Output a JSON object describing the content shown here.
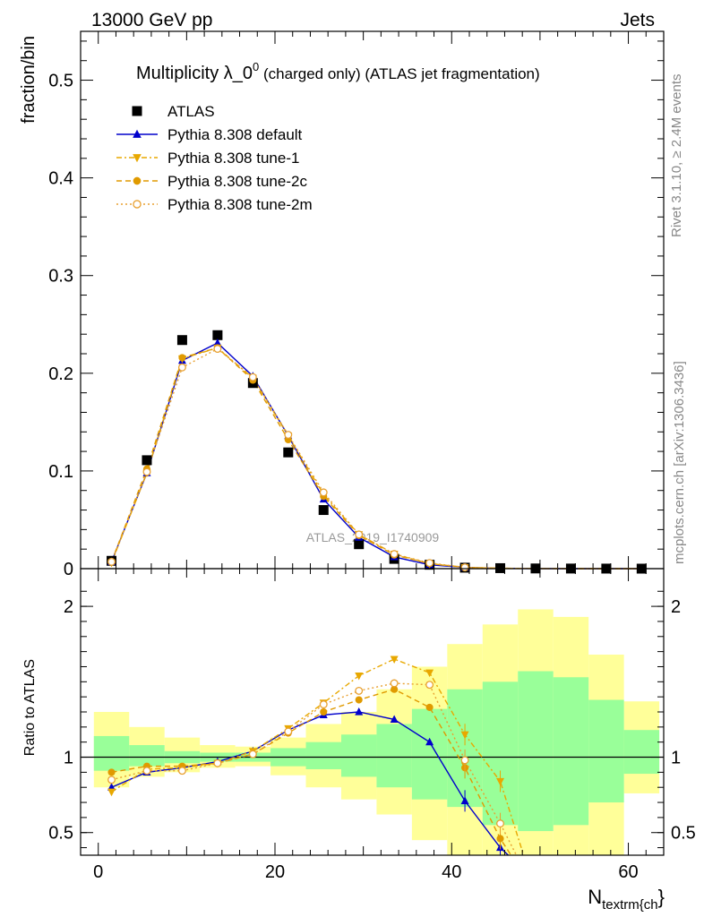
{
  "header": {
    "left": "13000 GeV pp",
    "right": "Jets"
  },
  "side_labels": {
    "rivet": "Rivet 3.1.10, ≥ 2.4M events",
    "mcplots": "mcplots.cern.ch [arXiv:1306.3436]"
  },
  "chart_data": [
    {
      "type": "line",
      "title_main": "Multiplicity λ_0",
      "title_sup": "0",
      "title_rest": " (charged only) (ATLAS jet fragmentation)",
      "ylabel": "fraction/bin",
      "watermark": "ATLAS_2019_I1740909",
      "xlim": [
        -2,
        64
      ],
      "ylim": [
        0,
        0.55
      ],
      "yticks": [
        0,
        0.1,
        0.2,
        0.3,
        0.4,
        0.5
      ],
      "ytick_labels": [
        "0",
        "0.1",
        "0.2",
        "0.3",
        "0.4",
        "0.5"
      ],
      "x": [
        1.5,
        5.5,
        9.5,
        13.5,
        17.5,
        21.5,
        25.5,
        29.5,
        33.5,
        37.5,
        41.5,
        45.5,
        49.5,
        53.5,
        57.5,
        61.5
      ],
      "series": [
        {
          "name": "ATLAS",
          "color": "#000000",
          "marker": "square",
          "dash": "",
          "values": [
            0.008,
            0.111,
            0.234,
            0.239,
            0.19,
            0.119,
            0.06,
            0.025,
            0.01,
            0.004,
            0.001,
            0.0005,
            0.0002,
            0.0001,
            5e-05,
            0.0
          ]
        },
        {
          "name": "Pythia 8.308 default",
          "color": "#0000cc",
          "marker": "tri-up",
          "dash": "",
          "values": [
            0.007,
            0.098,
            0.213,
            0.231,
            0.197,
            0.136,
            0.071,
            0.032,
            0.012,
            0.004,
            0.0012,
            0.0003,
            0.0001,
            0.0,
            0.0,
            0.0
          ]
        },
        {
          "name": "Pythia 8.308 tune-1",
          "color": "#e8a800",
          "marker": "tri-down",
          "dash": "6,3,2,3",
          "values": [
            0.006,
            0.098,
            0.215,
            0.226,
            0.195,
            0.136,
            0.076,
            0.035,
            0.015,
            0.005,
            0.0013,
            0.0004,
            0.0001,
            0.0,
            0.0,
            0.0
          ]
        },
        {
          "name": "Pythia 8.308 tune-2c",
          "color": "#e09a00",
          "marker": "circle",
          "dash": "6,4",
          "values": [
            0.007,
            0.102,
            0.216,
            0.226,
            0.193,
            0.132,
            0.074,
            0.034,
            0.014,
            0.0052,
            0.0013,
            0.0004,
            0.0001,
            0.0,
            0.0,
            0.0
          ]
        },
        {
          "name": "Pythia 8.308 tune-2m",
          "color": "#e8a030",
          "marker": "circle-open",
          "dash": "2,3",
          "values": [
            0.007,
            0.099,
            0.206,
            0.225,
            0.196,
            0.137,
            0.078,
            0.035,
            0.015,
            0.0058,
            0.0013,
            0.0004,
            0.0001,
            0.0,
            0.0,
            0.0
          ]
        }
      ]
    },
    {
      "type": "line",
      "ylabel": "Ratio to ATLAS",
      "xlabel_main": "N",
      "xlabel_sub": "textrm{ch",
      "xlabel_end": "}",
      "xlim": [
        -2,
        64
      ],
      "ylim": [
        0.35,
        2.25
      ],
      "yticks": [
        0.5,
        1,
        2
      ],
      "ytick_labels": [
        "0.5",
        "1",
        "2"
      ],
      "xticks": [
        0,
        20,
        40,
        60
      ],
      "xtick_labels": [
        "0",
        "20",
        "40",
        "60"
      ],
      "reference": 1,
      "bands": {
        "edges": [
          -0.5,
          3.5,
          7.5,
          11.5,
          15.5,
          19.5,
          23.5,
          27.5,
          31.5,
          35.5,
          39.5,
          43.5,
          47.5,
          51.5,
          55.5,
          59.5,
          63.5
        ],
        "yellow_color": "#ffff99",
        "green_color": "#99ff99",
        "yellow": [
          [
            0.8,
            1.3
          ],
          [
            0.87,
            1.2
          ],
          [
            0.9,
            1.13
          ],
          [
            0.93,
            1.08
          ],
          [
            0.94,
            1.07
          ],
          [
            0.88,
            1.13
          ],
          [
            0.8,
            1.22
          ],
          [
            0.72,
            1.3
          ],
          [
            0.62,
            1.45
          ],
          [
            0.45,
            1.6
          ],
          [
            0.35,
            1.75
          ],
          [
            0.35,
            1.88
          ],
          [
            0.35,
            1.98
          ],
          [
            0.35,
            1.93
          ],
          [
            0.35,
            1.68
          ],
          [
            0.76,
            1.37
          ]
        ],
        "green": [
          [
            0.91,
            1.14
          ],
          [
            0.94,
            1.08
          ],
          [
            0.96,
            1.04
          ],
          [
            0.97,
            1.03
          ],
          [
            0.97,
            1.03
          ],
          [
            0.94,
            1.06
          ],
          [
            0.92,
            1.1
          ],
          [
            0.87,
            1.15
          ],
          [
            0.8,
            1.22
          ],
          [
            0.72,
            1.32
          ],
          [
            0.67,
            1.45
          ],
          [
            0.55,
            1.5
          ],
          [
            0.51,
            1.57
          ],
          [
            0.55,
            1.53
          ],
          [
            0.7,
            1.38
          ],
          [
            0.89,
            1.18
          ]
        ]
      },
      "x": [
        1.5,
        5.5,
        9.5,
        13.5,
        17.5,
        21.5,
        25.5,
        29.5,
        33.5,
        37.5,
        41.5,
        45.5,
        49.5
      ],
      "series": [
        {
          "name": "Pythia 8.308 default",
          "color": "#0000cc",
          "marker": "tri-up",
          "dash": "",
          "values": [
            0.8,
            0.9,
            0.93,
            0.97,
            1.04,
            1.18,
            1.28,
            1.3,
            1.25,
            1.1,
            0.71,
            0.4,
            0.18
          ]
        },
        {
          "name": "Pythia 8.308 tune-1",
          "color": "#e8a800",
          "marker": "tri-down",
          "dash": "6,3,2,3",
          "values": [
            0.77,
            0.92,
            0.93,
            0.96,
            1.04,
            1.19,
            1.36,
            1.54,
            1.65,
            1.56,
            1.15,
            0.84,
            0.1
          ]
        },
        {
          "name": "Pythia 8.308 tune-2c",
          "color": "#e09a00",
          "marker": "circle",
          "dash": "6,4",
          "values": [
            0.9,
            0.94,
            0.94,
            0.96,
            1.02,
            1.16,
            1.3,
            1.38,
            1.45,
            1.33,
            0.93,
            0.46,
            0.1
          ]
        },
        {
          "name": "Pythia 8.308 tune-2m",
          "color": "#e8a030",
          "marker": "circle-open",
          "dash": "2,3",
          "values": [
            0.85,
            0.91,
            0.91,
            0.96,
            1.02,
            1.17,
            1.35,
            1.44,
            1.49,
            1.48,
            0.98,
            0.56,
            0.1
          ]
        }
      ]
    }
  ]
}
